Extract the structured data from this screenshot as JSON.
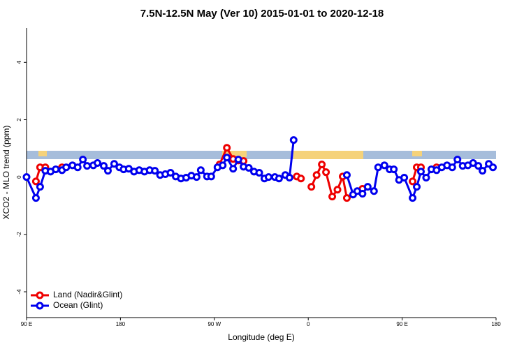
{
  "chart_data": {
    "type": "line",
    "title": "7.5N-12.5N May (Ver 10)   2015-01-01 to 2020-12-18",
    "x_label": "Longitude (deg E)",
    "y_label": "XCO2 - MLO trend (ppm)",
    "xlim": [
      90,
      540
    ],
    "ylim": [
      -4.9,
      5.2
    ],
    "xticks": [
      {
        "value": 90,
        "label": "90 E"
      },
      180,
      {
        "value": 270,
        "label": "90 W"
      },
      {
        "value": 360,
        "label": "0"
      },
      {
        "value": 450,
        "label": "90 E"
      },
      {
        "value": 540,
        "label": "180"
      }
    ],
    "yticks": [
      -4,
      -2,
      0,
      2,
      4
    ],
    "legend": "bottom-left",
    "series": [
      {
        "name": "Land (Nadir&Glint)",
        "color": "#ee0000",
        "x": [
          99,
          103,
          108,
          null,
          124,
          null,
          275,
          282,
          288,
          293,
          298,
          null,
          349,
          353,
          null,
          363,
          368,
          373,
          377,
          383,
          388,
          393,
          397,
          null,
          412,
          null,
          460,
          464,
          468,
          null,
          483
        ],
        "values": [
          -0.15,
          0.34,
          0.34,
          null,
          0.34,
          null,
          0.44,
          1.02,
          0.63,
          0.58,
          0.56,
          null,
          0.02,
          -0.05,
          null,
          -0.34,
          0.07,
          0.44,
          0.17,
          -0.68,
          -0.44,
          0.02,
          -0.73,
          null,
          -0.41,
          null,
          -0.15,
          0.34,
          0.34,
          null,
          0.34
        ]
      },
      {
        "name": "Ocean (Glint)",
        "color": "#0000ee",
        "x": [
          90,
          99,
          103,
          108,
          113,
          118,
          124,
          128,
          134,
          139,
          144,
          148,
          154,
          158,
          164,
          168,
          174,
          179,
          183,
          188,
          193,
          198,
          203,
          208,
          213,
          218,
          223,
          228,
          233,
          238,
          243,
          248,
          253,
          257,
          263,
          267,
          273,
          278,
          282,
          288,
          293,
          298,
          303,
          308,
          313,
          318,
          322,
          328,
          332,
          338,
          342,
          346,
          null,
          397,
          403,
          407,
          412,
          417,
          423,
          427,
          433,
          438,
          442,
          447,
          452,
          460,
          464,
          468,
          473,
          478,
          483,
          488,
          493,
          498,
          503,
          508,
          513,
          518,
          523,
          527,
          533,
          537
        ],
        "values": [
          0,
          -0.73,
          -0.34,
          0.22,
          0.19,
          0.27,
          0.24,
          0.34,
          0.41,
          0.34,
          0.61,
          0.39,
          0.41,
          0.49,
          0.39,
          0.22,
          0.46,
          0.34,
          0.27,
          0.29,
          0.19,
          0.24,
          0.19,
          0.24,
          0.22,
          0.07,
          0.1,
          0.15,
          0.02,
          -0.05,
          -0.02,
          0.05,
          0,
          0.24,
          0.02,
          0.02,
          0.34,
          0.41,
          0.68,
          0.29,
          0.61,
          0.36,
          0.32,
          0.19,
          0.15,
          -0.05,
          0,
          0,
          -0.05,
          0.07,
          -0.02,
          1.29,
          null,
          0.07,
          -0.61,
          -0.49,
          -0.58,
          -0.34,
          -0.49,
          0.34,
          0.41,
          0.27,
          0.27,
          -0.1,
          -0.02,
          -0.73,
          -0.34,
          0.19,
          -0.02,
          0.27,
          0.24,
          0.34,
          0.41,
          0.34,
          0.61,
          0.39,
          0.41,
          0.49,
          0.39,
          0.22,
          0.46,
          0.34
        ]
      }
    ]
  }
}
